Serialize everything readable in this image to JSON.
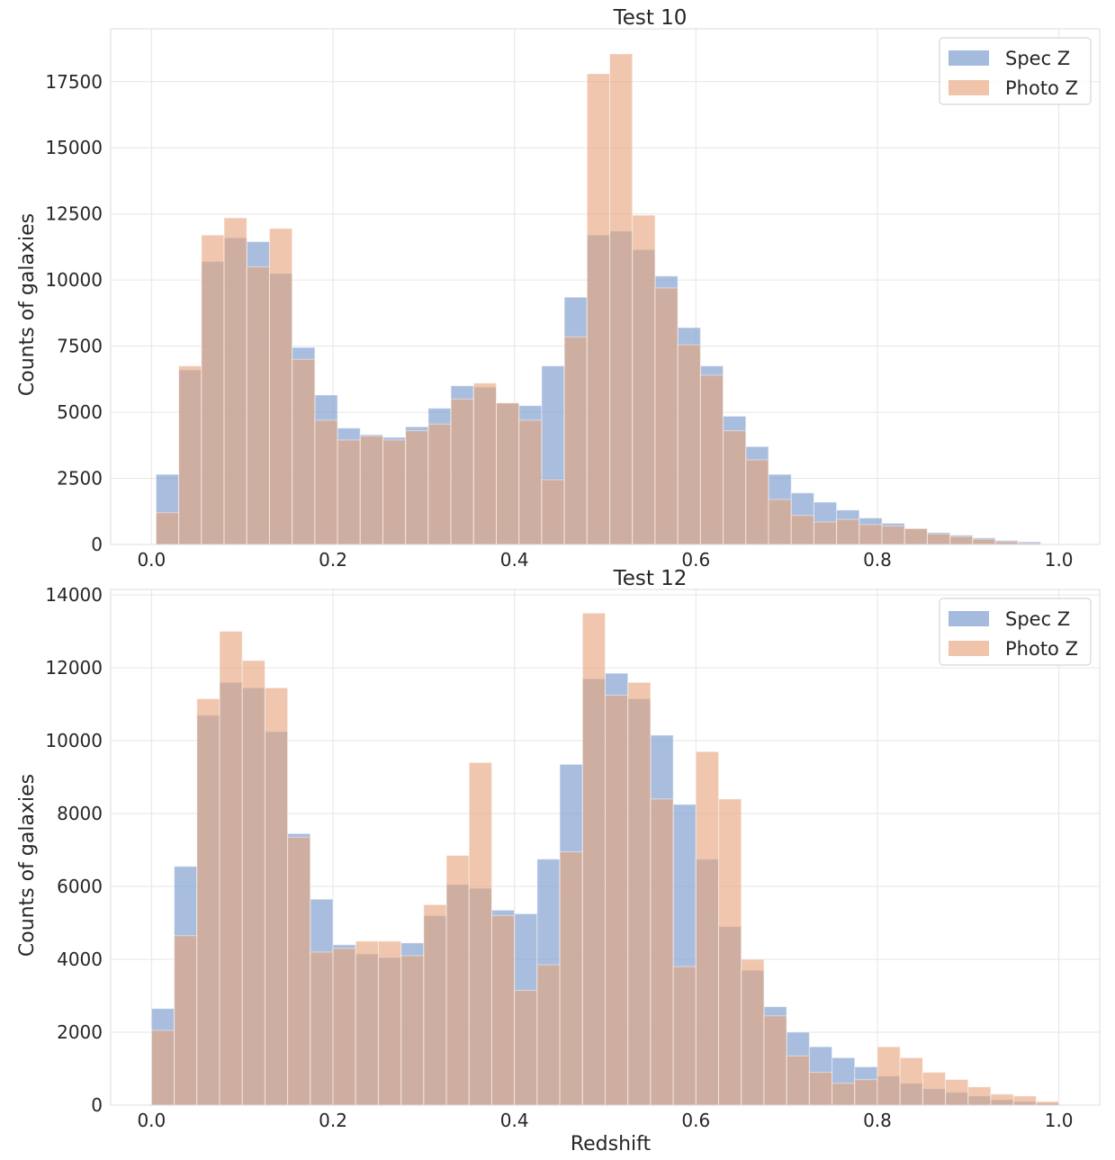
{
  "colors": {
    "spec": "#7496cc",
    "photo": "#e6a47c",
    "grid": "#e6e6e6",
    "frame": "#dcdcdc"
  },
  "chart_data": [
    {
      "type": "histogram",
      "title": "Test 10",
      "xlabel": "",
      "ylabel": "Counts of galaxies",
      "xlim": [
        -0.045,
        1.045
      ],
      "ylim": [
        0,
        19500
      ],
      "xticks": [
        0.0,
        0.2,
        0.4,
        0.6,
        0.8,
        1.0
      ],
      "xtick_labels": [
        "0.0",
        "0.2",
        "0.4",
        "0.6",
        "0.8",
        "1.0"
      ],
      "yticks": [
        0,
        2500,
        5000,
        7500,
        10000,
        12500,
        15000,
        17500
      ],
      "ytick_labels": [
        "0",
        "2500",
        "5000",
        "7500",
        "10000",
        "12500",
        "15000",
        "17500"
      ],
      "bin_start": 0.005,
      "bin_width": 0.025,
      "legend": {
        "position": "top-right",
        "entries": [
          "Spec Z",
          "Photo Z"
        ]
      },
      "series": [
        {
          "name": "Spec Z",
          "values": [
            2650,
            6600,
            10700,
            11600,
            11450,
            10250,
            7450,
            5650,
            4400,
            4150,
            4050,
            4450,
            5150,
            6000,
            5950,
            5350,
            5250,
            6750,
            9350,
            11700,
            11850,
            11150,
            10150,
            8200,
            6750,
            4850,
            3700,
            2650,
            1950,
            1600,
            1300,
            1000,
            800,
            600,
            450,
            350,
            250,
            150,
            100
          ]
        },
        {
          "name": "Photo Z",
          "values": [
            1200,
            6750,
            11700,
            12350,
            10500,
            11950,
            7000,
            4700,
            3950,
            4100,
            3950,
            4300,
            4550,
            5500,
            6100,
            5350,
            4700,
            2450,
            7850,
            17800,
            18550,
            12450,
            9700,
            7550,
            6400,
            4300,
            3200,
            1700,
            1100,
            850,
            950,
            750,
            700,
            600,
            400,
            300,
            200,
            100,
            50
          ]
        }
      ]
    },
    {
      "type": "histogram",
      "title": "Test 12",
      "xlabel": "Redshift",
      "ylabel": "Counts of galaxies",
      "xlim": [
        -0.045,
        1.045
      ],
      "ylim": [
        0,
        14150
      ],
      "xticks": [
        0.0,
        0.2,
        0.4,
        0.6,
        0.8,
        1.0
      ],
      "xtick_labels": [
        "0.0",
        "0.2",
        "0.4",
        "0.6",
        "0.8",
        "1.0"
      ],
      "yticks": [
        0,
        2000,
        4000,
        6000,
        8000,
        10000,
        12000,
        14000
      ],
      "ytick_labels": [
        "0",
        "2000",
        "4000",
        "6000",
        "8000",
        "10000",
        "12000",
        "14000"
      ],
      "bin_start": 0.0,
      "bin_width": 0.025,
      "legend": {
        "position": "top-right",
        "entries": [
          "Spec Z",
          "Photo Z"
        ]
      },
      "series": [
        {
          "name": "Spec Z",
          "values": [
            2650,
            6550,
            10700,
            11600,
            11450,
            10250,
            7450,
            5650,
            4400,
            4150,
            4050,
            4450,
            5200,
            6050,
            5950,
            5350,
            5250,
            6750,
            9350,
            11700,
            11850,
            11150,
            10150,
            8250,
            6750,
            4900,
            3700,
            2700,
            2000,
            1600,
            1300,
            1050,
            800,
            600,
            450,
            350,
            250,
            150,
            100,
            50
          ]
        },
        {
          "name": "Photo Z",
          "values": [
            2050,
            4650,
            11150,
            13000,
            12200,
            11450,
            7350,
            4200,
            4300,
            4500,
            4500,
            4100,
            5500,
            6850,
            9400,
            5200,
            3150,
            3850,
            6950,
            13500,
            11250,
            11600,
            8400,
            3800,
            9700,
            8400,
            4000,
            2450,
            1350,
            900,
            600,
            700,
            1600,
            1300,
            900,
            700,
            500,
            300,
            250,
            100
          ]
        }
      ]
    }
  ]
}
